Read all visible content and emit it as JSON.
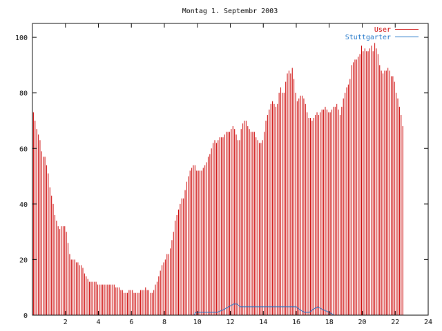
{
  "chart_data": {
    "type": "bar",
    "title": "Montag 1. Septembr 2003",
    "xlabel": "",
    "ylabel": "",
    "xlim": [
      0,
      24
    ],
    "ylim": [
      0,
      105
    ],
    "x_ticks": [
      2,
      4,
      6,
      8,
      10,
      12,
      14,
      16,
      18,
      20,
      22,
      24
    ],
    "y_ticks": [
      0,
      20,
      40,
      60,
      80,
      100
    ],
    "legend_position": "top-right",
    "grid": false,
    "series": [
      {
        "name": "User",
        "type": "bar",
        "color": "#cc0000",
        "sample_interval_hours": 0.1,
        "values": [
          73,
          70,
          67,
          65,
          63,
          59,
          57,
          57,
          54,
          51,
          46,
          43,
          40,
          36,
          34,
          32,
          31,
          32,
          32,
          32,
          30,
          26,
          22,
          20,
          20,
          20,
          19,
          19,
          18,
          18,
          17,
          15,
          14,
          13,
          12,
          12,
          12,
          12,
          12,
          11,
          11,
          11,
          11,
          11,
          11,
          11,
          11,
          11,
          11,
          11,
          10,
          10,
          10,
          9,
          9,
          8,
          8,
          8,
          9,
          9,
          9,
          8,
          8,
          8,
          8,
          9,
          9,
          9,
          10,
          9,
          9,
          8,
          8,
          9,
          11,
          12,
          14,
          16,
          18,
          19,
          20,
          22,
          22,
          24,
          27,
          30,
          34,
          36,
          38,
          40,
          42,
          42,
          45,
          48,
          50,
          52,
          53,
          54,
          54,
          52,
          52,
          52,
          52,
          53,
          54,
          55,
          57,
          58,
          60,
          62,
          63,
          62,
          63,
          64,
          64,
          64,
          65,
          66,
          66,
          66,
          67,
          68,
          67,
          65,
          63,
          63,
          67,
          69,
          70,
          70,
          68,
          67,
          66,
          66,
          66,
          64,
          63,
          62,
          62,
          63,
          66,
          70,
          72,
          74,
          76,
          77,
          76,
          75,
          76,
          80,
          82,
          80,
          80,
          84,
          87,
          88,
          87,
          89,
          85,
          80,
          77,
          78,
          79,
          79,
          78,
          76,
          73,
          71,
          71,
          70,
          71,
          72,
          73,
          72,
          73,
          74,
          74,
          75,
          74,
          73,
          73,
          74,
          75,
          75,
          76,
          74,
          72,
          75,
          78,
          80,
          82,
          83,
          85,
          90,
          91,
          92,
          92,
          93,
          94,
          97,
          95,
          96,
          95,
          95,
          96,
          97,
          95,
          98,
          96,
          94,
          90,
          88,
          87,
          88,
          88,
          89,
          88,
          86,
          86,
          84,
          80,
          78,
          75,
          72,
          68
        ]
      },
      {
        "name": "Stuttgarter",
        "type": "line",
        "color": "#1e74c8",
        "points": [
          [
            0,
            0
          ],
          [
            9.8,
            0
          ],
          [
            9.9,
            1
          ],
          [
            11.2,
            1
          ],
          [
            11.6,
            2
          ],
          [
            11.9,
            3
          ],
          [
            12.2,
            4
          ],
          [
            12.4,
            4
          ],
          [
            12.6,
            3
          ],
          [
            16,
            3
          ],
          [
            16.2,
            2
          ],
          [
            16.5,
            1
          ],
          [
            16.8,
            1
          ],
          [
            17,
            2
          ],
          [
            17.3,
            3
          ],
          [
            17.6,
            2
          ],
          [
            18,
            1
          ],
          [
            18.3,
            0
          ],
          [
            24,
            0
          ]
        ]
      }
    ]
  }
}
